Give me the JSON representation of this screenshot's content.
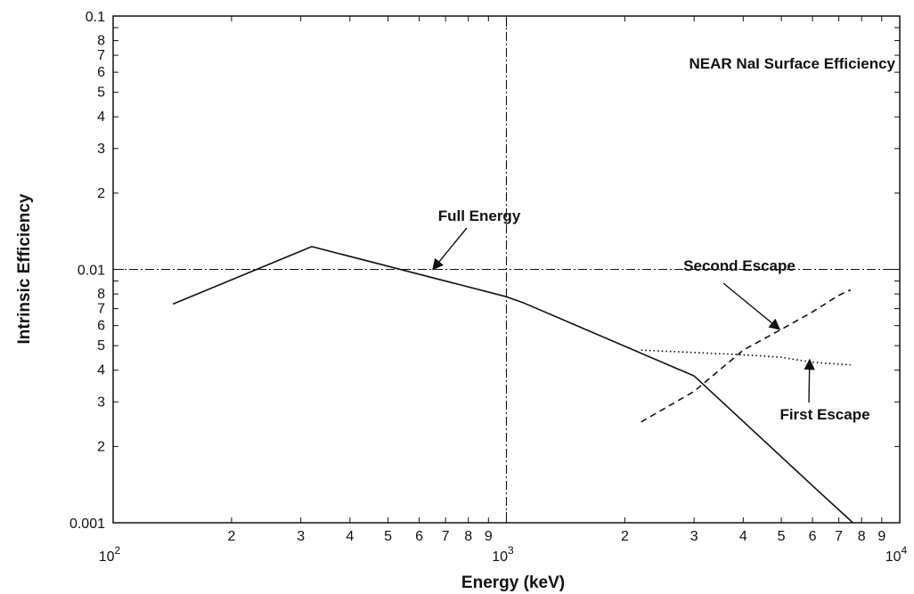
{
  "chart_data": {
    "type": "line",
    "title": "NEAR  NaI Surface Efficiency",
    "xlabel": "Energy (keV)",
    "ylabel": "Intrinsic Efficiency",
    "x_scale": "log",
    "y_scale": "log",
    "xlim": [
      100,
      10000
    ],
    "ylim": [
      0.001,
      0.1
    ],
    "reference_lines": {
      "x": 1000,
      "y": 0.01
    },
    "x_major_tick_labels": [
      {
        "value": 100,
        "base": "10",
        "exp": "2"
      },
      {
        "value": 1000,
        "base": "10",
        "exp": "3"
      },
      {
        "value": 10000,
        "base": "10",
        "exp": "4"
      }
    ],
    "x_minor_tick_labels": [
      {
        "value": 200,
        "label": "2"
      },
      {
        "value": 300,
        "label": "3"
      },
      {
        "value": 400,
        "label": "4"
      },
      {
        "value": 500,
        "label": "5"
      },
      {
        "value": 600,
        "label": "6"
      },
      {
        "value": 700,
        "label": "7"
      },
      {
        "value": 800,
        "label": "8"
      },
      {
        "value": 900,
        "label": "9"
      },
      {
        "value": 2000,
        "label": "2"
      },
      {
        "value": 3000,
        "label": "3"
      },
      {
        "value": 4000,
        "label": "4"
      },
      {
        "value": 5000,
        "label": "5"
      },
      {
        "value": 6000,
        "label": "6"
      },
      {
        "value": 7000,
        "label": "7"
      },
      {
        "value": 8000,
        "label": "8"
      },
      {
        "value": 9000,
        "label": "9"
      }
    ],
    "y_major_tick_labels": [
      {
        "value": 0.001,
        "label": "0.001"
      },
      {
        "value": 0.01,
        "label": "0.01"
      },
      {
        "value": 0.1,
        "label": "0.1"
      }
    ],
    "y_minor_tick_labels": [
      {
        "value": 0.002,
        "label": "2"
      },
      {
        "value": 0.003,
        "label": "3"
      },
      {
        "value": 0.004,
        "label": "4"
      },
      {
        "value": 0.005,
        "label": "5"
      },
      {
        "value": 0.006,
        "label": "6"
      },
      {
        "value": 0.007,
        "label": "7"
      },
      {
        "value": 0.008,
        "label": "8"
      },
      {
        "value": 0.02,
        "label": "2"
      },
      {
        "value": 0.03,
        "label": "3"
      },
      {
        "value": 0.04,
        "label": "4"
      },
      {
        "value": 0.05,
        "label": "5"
      },
      {
        "value": 0.06,
        "label": "6"
      },
      {
        "value": 0.07,
        "label": "7"
      },
      {
        "value": 0.08,
        "label": "8"
      }
    ],
    "series": [
      {
        "name": "Full Energy",
        "style": "solid",
        "x": [
          142,
          320,
          1000,
          1100,
          3000,
          6000,
          7600
        ],
        "y": [
          0.0073,
          0.0123,
          0.0078,
          0.0074,
          0.0038,
          0.0014,
          0.001
        ]
      },
      {
        "name": "Second Escape",
        "style": "dashed",
        "x": [
          2200,
          3000,
          4000,
          5000,
          6000,
          7000,
          7500
        ],
        "y": [
          0.0025,
          0.0033,
          0.0048,
          0.0058,
          0.0068,
          0.0079,
          0.0083
        ]
      },
      {
        "name": "First Escape",
        "style": "dotted",
        "x": [
          2200,
          3000,
          4000,
          5000,
          6000,
          7500
        ],
        "y": [
          0.0048,
          0.0047,
          0.0046,
          0.0045,
          0.0043,
          0.0042
        ]
      }
    ],
    "annotations": [
      {
        "text": "Full Energy",
        "series": "Full Energy",
        "arrow_to": {
          "x": 650,
          "y": 0.01
        }
      },
      {
        "text": "Second Escape",
        "series": "Second Escape",
        "arrow_to": {
          "x": 4950,
          "y": 0.0058
        }
      },
      {
        "text": "First Escape",
        "series": "First Escape",
        "arrow_to": {
          "x": 5900,
          "y": 0.0044
        }
      }
    ]
  }
}
